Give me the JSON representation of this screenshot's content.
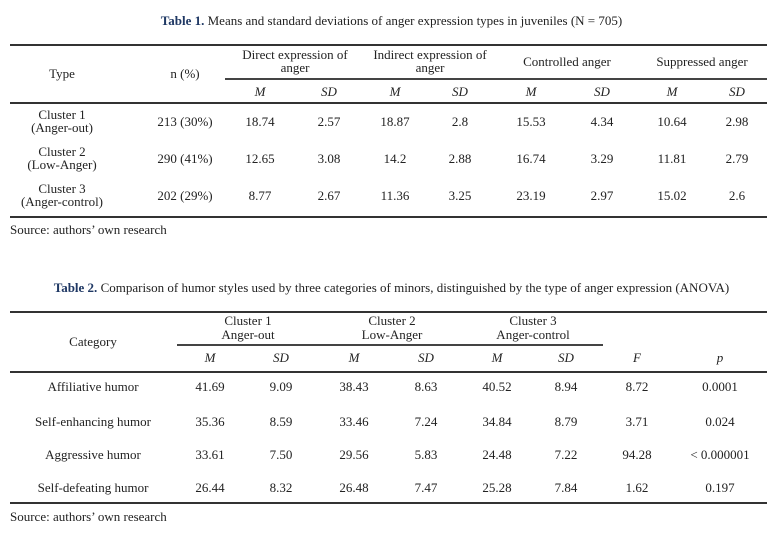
{
  "table1": {
    "label": "Table 1.",
    "caption": "Means and standard deviations of anger expression types in juveniles (N = 705)",
    "headers": {
      "type": "Type",
      "n": "n (%)",
      "groups": [
        "Direct expression of anger",
        "Indirect expression of anger",
        "Controlled anger",
        "Suppressed anger"
      ],
      "group_lines": [
        [
          "Direct expression of",
          "anger"
        ],
        [
          "Indirect expression of",
          "anger"
        ],
        [
          "Controlled anger"
        ],
        [
          "Suppressed anger"
        ]
      ],
      "m": "M",
      "sd": "SD"
    },
    "rows": [
      {
        "type": [
          "Cluster 1",
          "(Anger-out)"
        ],
        "n": "213 (30%)",
        "values": [
          "18.74",
          "2.57",
          "18.87",
          "2.8",
          "15.53",
          "4.34",
          "10.64",
          "2.98"
        ]
      },
      {
        "type": [
          "Cluster 2",
          "(Low-Anger)"
        ],
        "n": "290 (41%)",
        "values": [
          "12.65",
          "3.08",
          "14.2",
          "2.88",
          "16.74",
          "3.29",
          "11.81",
          "2.79"
        ]
      },
      {
        "type": [
          "Cluster 3",
          "(Anger-control)"
        ],
        "n": "202 (29%)",
        "values": [
          "8.77",
          "2.67",
          "11.36",
          "3.25",
          "23.19",
          "2.97",
          "15.02",
          "2.6"
        ]
      }
    ],
    "source": "Source: authors’ own research"
  },
  "table2": {
    "label": "Table 2.",
    "caption": "Comparison of humor styles used by three categories of minors, distinguished by the type of anger expression (ANOVA)",
    "headers": {
      "category": "Category",
      "groups": [
        [
          "Cluster 1",
          "Anger-out"
        ],
        [
          "Cluster 2",
          "Low-Anger"
        ],
        [
          "Cluster 3",
          "Anger-control"
        ]
      ],
      "m": "M",
      "sd": "SD",
      "f": "F",
      "p": "p"
    },
    "rows": [
      {
        "category": "Affiliative humor",
        "values": [
          "41.69",
          "9.09",
          "38.43",
          "8.63",
          "40.52",
          "8.94",
          "8.72",
          "0.0001"
        ]
      },
      {
        "category": "Self-enhancing humor",
        "values": [
          "35.36",
          "8.59",
          "33.46",
          "7.24",
          "34.84",
          "8.79",
          "3.71",
          "0.024"
        ]
      },
      {
        "category": "Aggressive humor",
        "values": [
          "33.61",
          "7.50",
          "29.56",
          "5.83",
          "24.48",
          "7.22",
          "94.28",
          "< 0.000001"
        ]
      },
      {
        "category": "Self-defeating humor",
        "values": [
          "26.44",
          "8.32",
          "26.48",
          "7.47",
          "25.28",
          "7.84",
          "1.62",
          "0.197"
        ]
      }
    ],
    "source": "Source: authors’ own research"
  }
}
